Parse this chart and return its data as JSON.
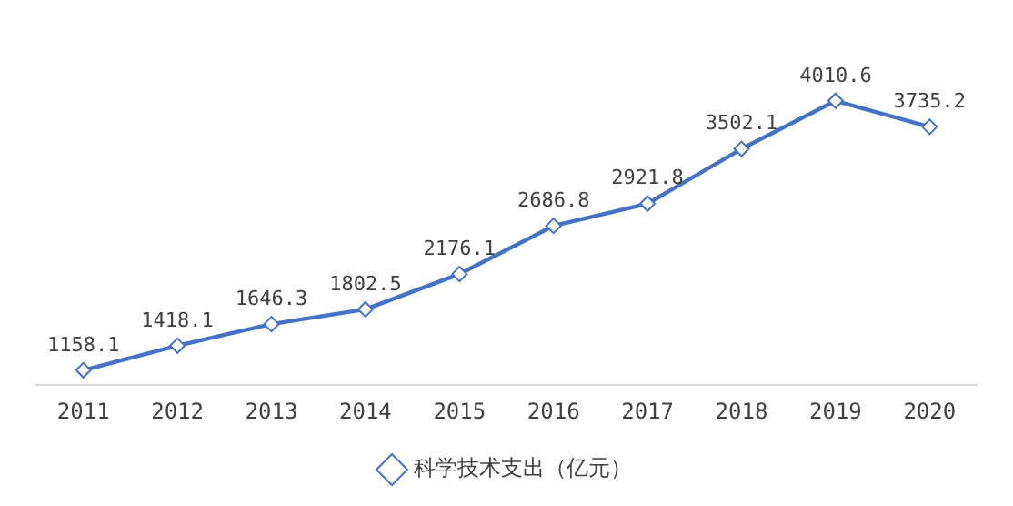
{
  "chart_data": {
    "type": "line",
    "categories": [
      "2011",
      "2012",
      "2013",
      "2014",
      "2015",
      "2016",
      "2017",
      "2018",
      "2019",
      "2020"
    ],
    "series": [
      {
        "name": "科学技术支出（亿元）",
        "color": "#4472c4",
        "values": [
          1158.1,
          1418.1,
          1646.3,
          1802.5,
          2176.1,
          2686.8,
          2921.8,
          3502.1,
          4010.6,
          3735.2
        ]
      }
    ],
    "data_labels": true,
    "marker": "diamond",
    "line_style": "solid",
    "legend": "bottom",
    "grid": false,
    "tick_labels": "x"
  }
}
